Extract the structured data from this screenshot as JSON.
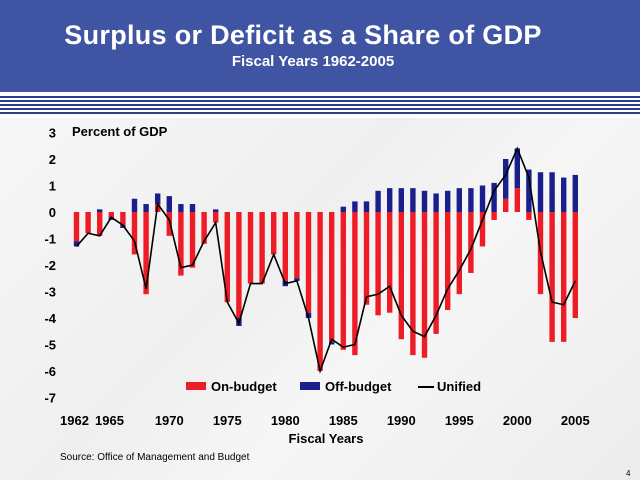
{
  "slide": {
    "title": "Surplus or Deficit as a Share of GDP",
    "subtitle": "Fiscal Years 1962-2005",
    "source": "Source: Office of Management and Budget",
    "page_number": "4"
  },
  "colors": {
    "header": "#3f55a3",
    "on_budget": "#ee1c25",
    "off_budget": "#1a1f8c",
    "unified": "#000000"
  },
  "chart_data": {
    "type": "bar",
    "ylabel": "Percent of GDP",
    "xlabel": "Fiscal Years",
    "ylim": [
      -7,
      3
    ],
    "yticks": [
      3,
      2,
      1,
      0,
      -1,
      -2,
      -3,
      -4,
      -5,
      -6,
      -7
    ],
    "xtick_labels": [
      "1962",
      "1965",
      "1970",
      "1975",
      "1980",
      "1985",
      "1990",
      "1995",
      "2000",
      "2005"
    ],
    "xtick_years": [
      1962,
      1965,
      1970,
      1975,
      1980,
      1985,
      1990,
      1995,
      2000,
      2005
    ],
    "legend": [
      "On-budget",
      "Off-budget",
      "Unified"
    ],
    "legend_position": "bottom",
    "grid": false,
    "x": [
      1962,
      1963,
      1964,
      1965,
      1966,
      1967,
      1968,
      1969,
      1970,
      1971,
      1972,
      1973,
      1974,
      1975,
      1976,
      1977,
      1978,
      1979,
      1980,
      1981,
      1982,
      1983,
      1984,
      1985,
      1986,
      1987,
      1988,
      1989,
      1990,
      1991,
      1992,
      1993,
      1994,
      1995,
      1996,
      1997,
      1998,
      1999,
      2000,
      2001,
      2002,
      2003,
      2004,
      2005
    ],
    "series": [
      {
        "name": "On-budget",
        "values": [
          -1.1,
          -0.8,
          -0.9,
          -0.2,
          -0.5,
          -1.6,
          -3.1,
          0.3,
          -0.9,
          -2.4,
          -2.1,
          -1.2,
          -0.4,
          -3.4,
          -4.0,
          -2.7,
          -2.7,
          -1.6,
          -2.6,
          -2.5,
          -3.8,
          -6.0,
          -4.9,
          -5.2,
          -5.4,
          -3.5,
          -3.9,
          -3.8,
          -4.8,
          -5.4,
          -5.5,
          -4.6,
          -3.7,
          -3.1,
          -2.3,
          -1.3,
          -0.3,
          0.5,
          0.9,
          -0.3,
          -3.1,
          -4.9,
          -4.9,
          -4.0
        ]
      },
      {
        "name": "Off-budget",
        "values": [
          -0.2,
          0.0,
          0.1,
          -0.1,
          -0.1,
          0.5,
          0.3,
          0.4,
          0.6,
          0.3,
          0.3,
          0.0,
          0.1,
          0.0,
          -0.3,
          0.0,
          0.0,
          0.0,
          -0.2,
          -0.1,
          -0.2,
          0.0,
          -0.1,
          0.2,
          0.4,
          0.4,
          0.8,
          0.9,
          0.9,
          0.9,
          0.8,
          0.7,
          0.8,
          0.9,
          0.9,
          1.0,
          1.1,
          1.5,
          1.5,
          1.6,
          1.5,
          1.5,
          1.3,
          1.4
        ]
      },
      {
        "name": "Unified",
        "values": [
          -1.3,
          -0.8,
          -0.9,
          -0.2,
          -0.5,
          -1.1,
          -2.9,
          0.3,
          -0.3,
          -2.1,
          -2.0,
          -1.1,
          -0.4,
          -3.4,
          -4.2,
          -2.7,
          -2.7,
          -1.6,
          -2.7,
          -2.6,
          -4.0,
          -6.0,
          -4.8,
          -5.1,
          -5.0,
          -3.2,
          -3.1,
          -2.8,
          -3.9,
          -4.5,
          -4.7,
          -3.9,
          -2.9,
          -2.2,
          -1.4,
          -0.3,
          0.8,
          1.4,
          2.4,
          1.3,
          -1.5,
          -3.4,
          -3.5,
          -2.6
        ]
      }
    ]
  }
}
